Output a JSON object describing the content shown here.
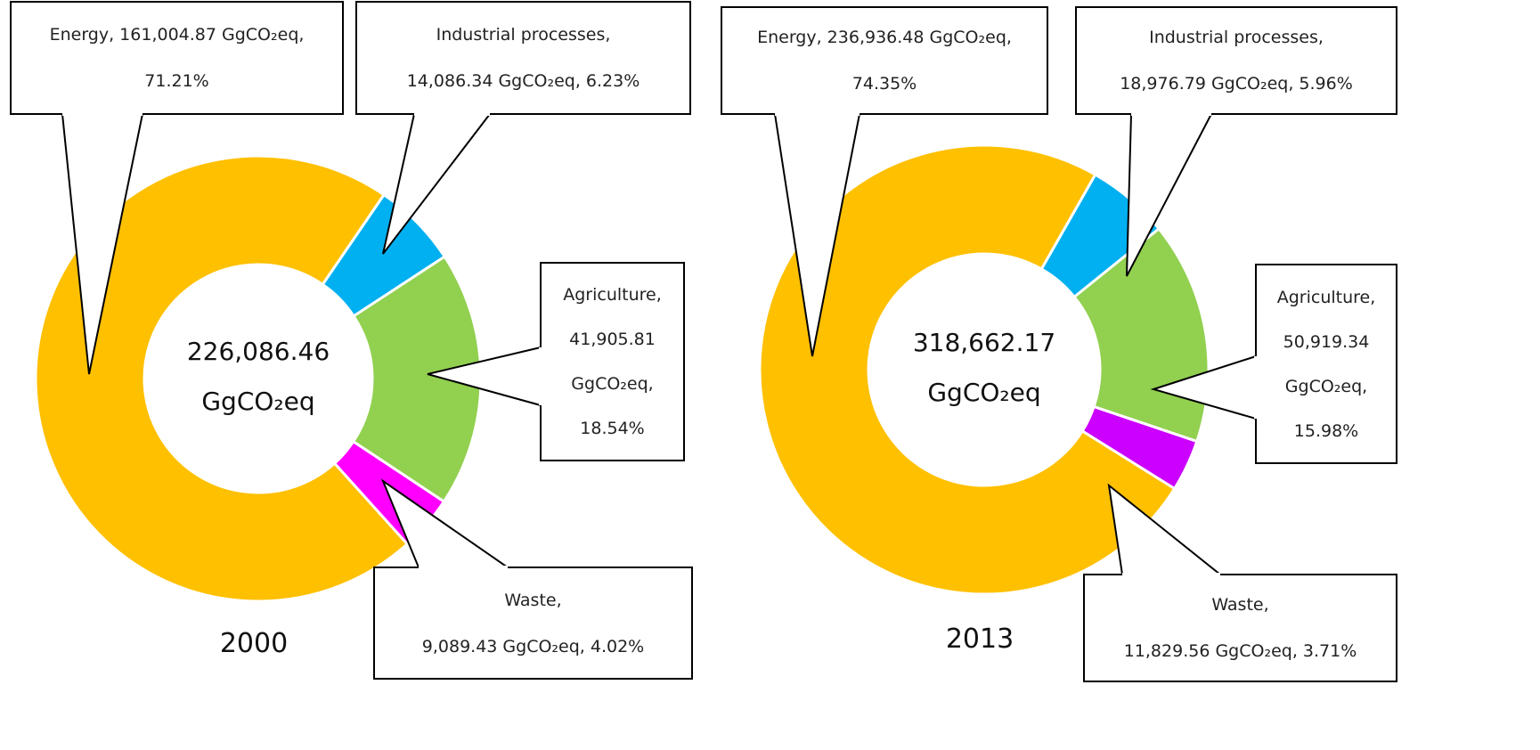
{
  "chart_data": [
    {
      "type": "pie",
      "title": "2000",
      "center_label": "226,086.46\nGgCO₂eq",
      "values": [
        161004.87,
        14086.34,
        41905.81,
        9089.43
      ],
      "value_labels": [
        "Energy, 161,004.87 GgCO₂eq,\n71.21%",
        "Industrial processes,\n14,086.34 GgCO₂eq, 6.23%",
        "Agriculture,\n41,905.81\nGgCO₂eq,\n18.54%",
        "Waste,\n9,089.43 GgCO₂eq, 4.02%"
      ],
      "colors": [
        "#ffc000",
        "#00b0f0",
        "#92d050",
        "#ff00ff"
      ]
    },
    {
      "type": "pie",
      "title": "2013",
      "center_label": "318,662.17\nGgCO₂eq",
      "values": [
        236936.48,
        18976.79,
        50919.34,
        11829.56
      ],
      "value_labels": [
        "Energy, 236,936.48 GgCO₂eq,\n74.35%",
        "Industrial processes,\n18,976.79 GgCO₂eq, 5.96%",
        "Agriculture,\n50,919.34\nGgCO₂eq,\n15.98%",
        "Waste,\n11,829.56 GgCO₂eq, 3.71%"
      ],
      "colors": [
        "#ffc000",
        "#00b0f0",
        "#92d050",
        "#cc00ff"
      ]
    }
  ]
}
